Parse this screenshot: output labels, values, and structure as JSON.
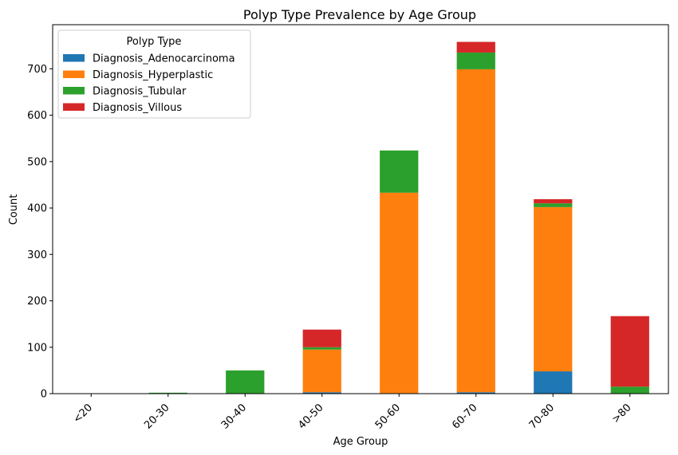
{
  "chart_data": {
    "type": "bar",
    "stacked": true,
    "title": "Polyp Type Prevalence by Age Group",
    "xlabel": "Age Group",
    "ylabel": "Count",
    "ylim": [
      0,
      795
    ],
    "yticks": [
      0,
      100,
      200,
      300,
      400,
      500,
      600,
      700
    ],
    "categories": [
      "<20",
      "20-30",
      "30-40",
      "40-50",
      "50-60",
      "60-70",
      "70-80",
      ">80"
    ],
    "legend": {
      "title": "Polyp Type",
      "position": "top-left"
    },
    "grid": false,
    "series": [
      {
        "name": "Diagnosis_Adenocarcinoma",
        "color": "#1f77b4",
        "values": [
          0,
          0,
          0,
          3,
          1,
          3,
          48,
          0
        ]
      },
      {
        "name": "Diagnosis_Hyperplastic",
        "color": "#ff7f0e",
        "values": [
          0,
          0,
          0,
          92,
          432,
          696,
          354,
          0
        ]
      },
      {
        "name": "Diagnosis_Tubular",
        "color": "#2ca02c",
        "values": [
          0,
          2,
          50,
          5,
          91,
          36,
          8,
          15
        ]
      },
      {
        "name": "Diagnosis_Villous",
        "color": "#d62728",
        "values": [
          0,
          0,
          0,
          38,
          0,
          23,
          9,
          152
        ]
      }
    ]
  }
}
